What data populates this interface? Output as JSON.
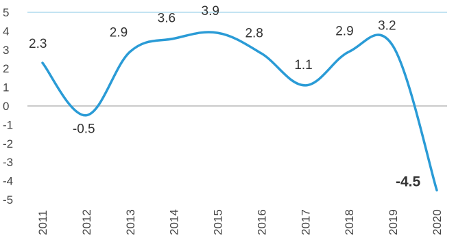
{
  "chart_data": {
    "type": "line",
    "categories": [
      "2011",
      "2012",
      "2013",
      "2014",
      "2015",
      "2016",
      "2017",
      "2018",
      "2019",
      "2020"
    ],
    "values": [
      2.3,
      -0.5,
      2.9,
      3.6,
      3.9,
      2.8,
      1.1,
      2.9,
      3.2,
      -4.5
    ],
    "data_labels": [
      "2.3",
      "-0.5",
      "2.9",
      "3.6",
      "3.9",
      "2.8",
      "1.1",
      "2.9",
      "3.2",
      "-4.5"
    ],
    "highlight_index": 9,
    "y_ticks": [
      "5",
      "4",
      "3",
      "2",
      "1",
      "0",
      "-1",
      "-2",
      "-3",
      "-4",
      "-5"
    ],
    "ylim": [
      -5,
      5
    ],
    "title": "",
    "xlabel": "",
    "ylabel": "",
    "grid": "horizontal line at 0 and at 5",
    "legend": "none",
    "colors": {
      "line": "#2a9bd6",
      "highlight_label": "#2a9bd6",
      "zero_line": "#aaaaaa",
      "top_line": "#9fd2ea",
      "text": "#444444"
    }
  }
}
